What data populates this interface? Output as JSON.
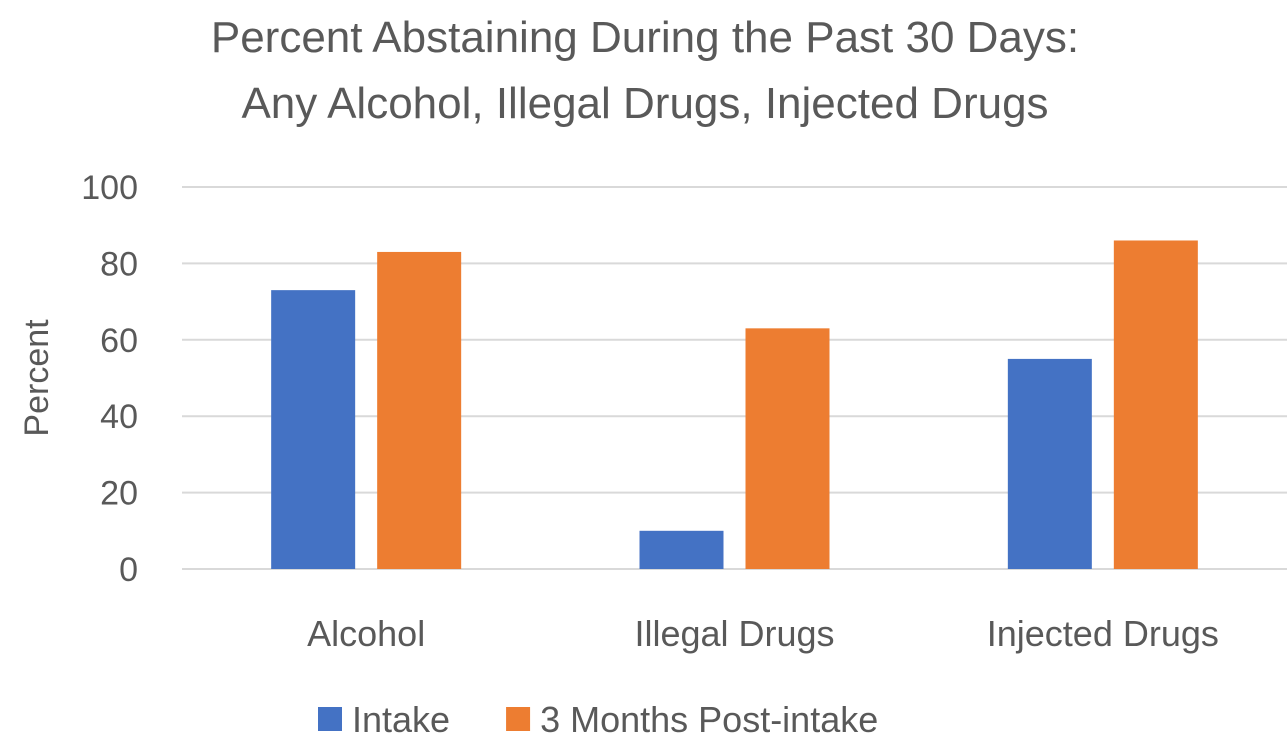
{
  "chart_data": {
    "type": "bar",
    "title": "Percent Abstaining During the Past 30 Days:",
    "subtitle": "Any Alcohol, Illegal Drugs, Injected Drugs",
    "xlabel": "",
    "ylabel": "Percent",
    "categories": [
      "Alcohol",
      "Illegal Drugs",
      "Injected Drugs"
    ],
    "series": [
      {
        "name": "Intake",
        "color": "#4472C4",
        "values": [
          73,
          10,
          55
        ]
      },
      {
        "name": "3 Months Post-intake",
        "color": "#ED7D31",
        "values": [
          83,
          63,
          86
        ]
      }
    ],
    "ylim": [
      0,
      100
    ],
    "yticks": [
      0,
      20,
      40,
      60,
      80,
      100
    ],
    "grid": true,
    "legend_position": "bottom"
  }
}
